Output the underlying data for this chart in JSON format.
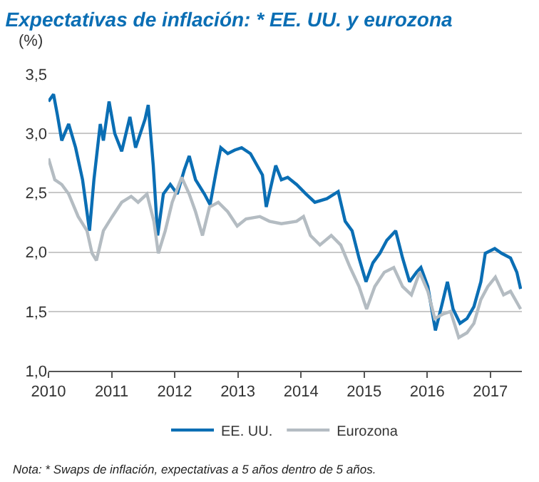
{
  "chart_data": {
    "type": "line",
    "title": "Expectativas de inflación: * EE. UU. y eurozona",
    "ylabel": "(%)",
    "xlim": [
      2010,
      2017.5
    ],
    "xticks": [
      2010,
      2011,
      2012,
      2013,
      2014,
      2015,
      2016,
      2017
    ],
    "ylim": [
      1.0,
      3.5
    ],
    "yticks": [
      {
        "value": 1.0,
        "label": "1,0"
      },
      {
        "value": 1.5,
        "label": "1,5"
      },
      {
        "value": 2.0,
        "label": "2,0"
      },
      {
        "value": 2.5,
        "label": "2,5"
      },
      {
        "value": 3.0,
        "label": "3,0"
      },
      {
        "value": 3.5,
        "label": "3,5"
      }
    ],
    "grid": "y",
    "legend": "bottom",
    "marker": "none",
    "line_style": "solid",
    "series": [
      {
        "name": "EE. UU.",
        "color": "#0a6eb4",
        "x": [
          2010.0,
          2010.08,
          2010.14,
          2010.21,
          2010.32,
          2010.43,
          2010.54,
          2010.65,
          2010.72,
          2010.82,
          2010.87,
          2010.96,
          2011.05,
          2011.16,
          2011.29,
          2011.38,
          2011.53,
          2011.58,
          2011.66,
          2011.73,
          2011.82,
          2011.93,
          2012.04,
          2012.15,
          2012.23,
          2012.33,
          2012.47,
          2012.56,
          2012.66,
          2012.73,
          2012.84,
          2012.95,
          2013.06,
          2013.2,
          2013.39,
          2013.45,
          2013.6,
          2013.69,
          2013.79,
          2013.93,
          2014.08,
          2014.22,
          2014.41,
          2014.59,
          2014.7,
          2014.81,
          2014.92,
          2015.03,
          2015.14,
          2015.25,
          2015.36,
          2015.5,
          2015.61,
          2015.72,
          2015.83,
          2015.9,
          2016.01,
          2016.13,
          2016.23,
          2016.32,
          2016.41,
          2016.52,
          2016.63,
          2016.74,
          2016.85,
          2016.92,
          2017.07,
          2017.18,
          2017.32,
          2017.42,
          2017.48
        ],
        "values": [
          3.27,
          3.33,
          3.16,
          2.94,
          3.08,
          2.88,
          2.61,
          2.18,
          2.61,
          3.08,
          2.94,
          3.27,
          3.0,
          2.85,
          3.14,
          2.88,
          3.12,
          3.24,
          2.73,
          2.14,
          2.49,
          2.57,
          2.49,
          2.69,
          2.81,
          2.61,
          2.49,
          2.4,
          2.69,
          2.88,
          2.83,
          2.86,
          2.88,
          2.83,
          2.65,
          2.38,
          2.73,
          2.61,
          2.63,
          2.57,
          2.49,
          2.42,
          2.45,
          2.51,
          2.26,
          2.18,
          1.95,
          1.75,
          1.91,
          1.99,
          2.1,
          2.18,
          1.95,
          1.75,
          1.83,
          1.87,
          1.71,
          1.34,
          1.55,
          1.75,
          1.52,
          1.4,
          1.44,
          1.54,
          1.75,
          1.99,
          2.03,
          1.99,
          1.95,
          1.83,
          1.69
        ]
      },
      {
        "name": "Eurozona",
        "color": "#b4bcc2",
        "x": [
          2010.0,
          2010.1,
          2010.21,
          2010.32,
          2010.47,
          2010.61,
          2010.69,
          2010.76,
          2010.87,
          2011.01,
          2011.16,
          2011.31,
          2011.42,
          2011.56,
          2011.67,
          2011.74,
          2011.85,
          2011.96,
          2012.11,
          2012.23,
          2012.33,
          2012.44,
          2012.55,
          2012.69,
          2012.84,
          2012.99,
          2013.13,
          2013.35,
          2013.5,
          2013.69,
          2013.93,
          2014.04,
          2014.15,
          2014.3,
          2014.48,
          2014.63,
          2014.78,
          2014.92,
          2015.04,
          2015.17,
          2015.32,
          2015.47,
          2015.61,
          2015.75,
          2015.88,
          2016.01,
          2016.12,
          2016.26,
          2016.37,
          2016.5,
          2016.63,
          2016.74,
          2016.85,
          2016.96,
          2017.08,
          2017.21,
          2017.32,
          2017.48
        ],
        "values": [
          2.79,
          2.61,
          2.57,
          2.49,
          2.3,
          2.18,
          1.99,
          1.93,
          2.18,
          2.3,
          2.42,
          2.47,
          2.42,
          2.49,
          2.26,
          1.99,
          2.18,
          2.42,
          2.63,
          2.49,
          2.34,
          2.14,
          2.38,
          2.42,
          2.34,
          2.22,
          2.28,
          2.3,
          2.26,
          2.24,
          2.26,
          2.3,
          2.14,
          2.06,
          2.14,
          2.06,
          1.87,
          1.71,
          1.52,
          1.71,
          1.83,
          1.87,
          1.71,
          1.64,
          1.83,
          1.67,
          1.44,
          1.48,
          1.5,
          1.28,
          1.32,
          1.4,
          1.6,
          1.71,
          1.79,
          1.64,
          1.67,
          1.52
        ]
      }
    ],
    "annotations": [
      "Nota: * Swaps de inflación, expectativas a 5 años dentro de 5 años."
    ]
  }
}
